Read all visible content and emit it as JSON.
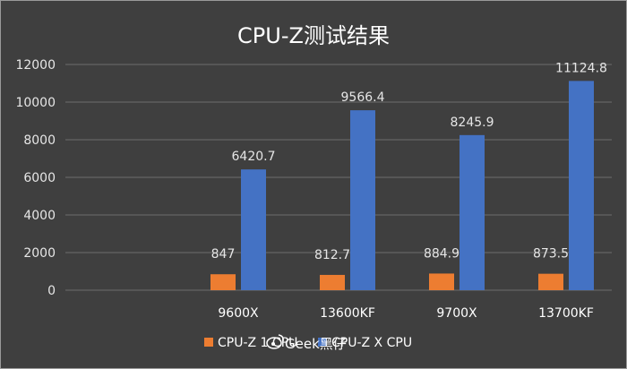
{
  "chart_data": {
    "type": "bar",
    "title": "CPU-Z测试结果",
    "categories": [
      "",
      "9600X",
      "13600KF",
      "9700X",
      "13700KF"
    ],
    "series": [
      {
        "name": "CPU-Z 1 CPU",
        "color": "#ed7d31",
        "values": [
          null,
          847,
          812.7,
          884.9,
          873.5
        ],
        "labels": [
          "",
          "847",
          "812.7",
          "884.9",
          "873.5"
        ]
      },
      {
        "name": "CPU-Z X CPU",
        "color": "#4472c4",
        "values": [
          null,
          6420.7,
          9566.4,
          8245.9,
          11124.8
        ],
        "labels": [
          "",
          "6420.7",
          "9566.4",
          "8245.9",
          "11124.8"
        ]
      }
    ],
    "ylim": [
      0,
      12000
    ],
    "yticks": [
      0,
      2000,
      4000,
      6000,
      8000,
      10000,
      12000
    ],
    "grid": true,
    "legend": "bottom",
    "xlabel": "",
    "ylabel": ""
  },
  "watermark": "Geek黑仔"
}
